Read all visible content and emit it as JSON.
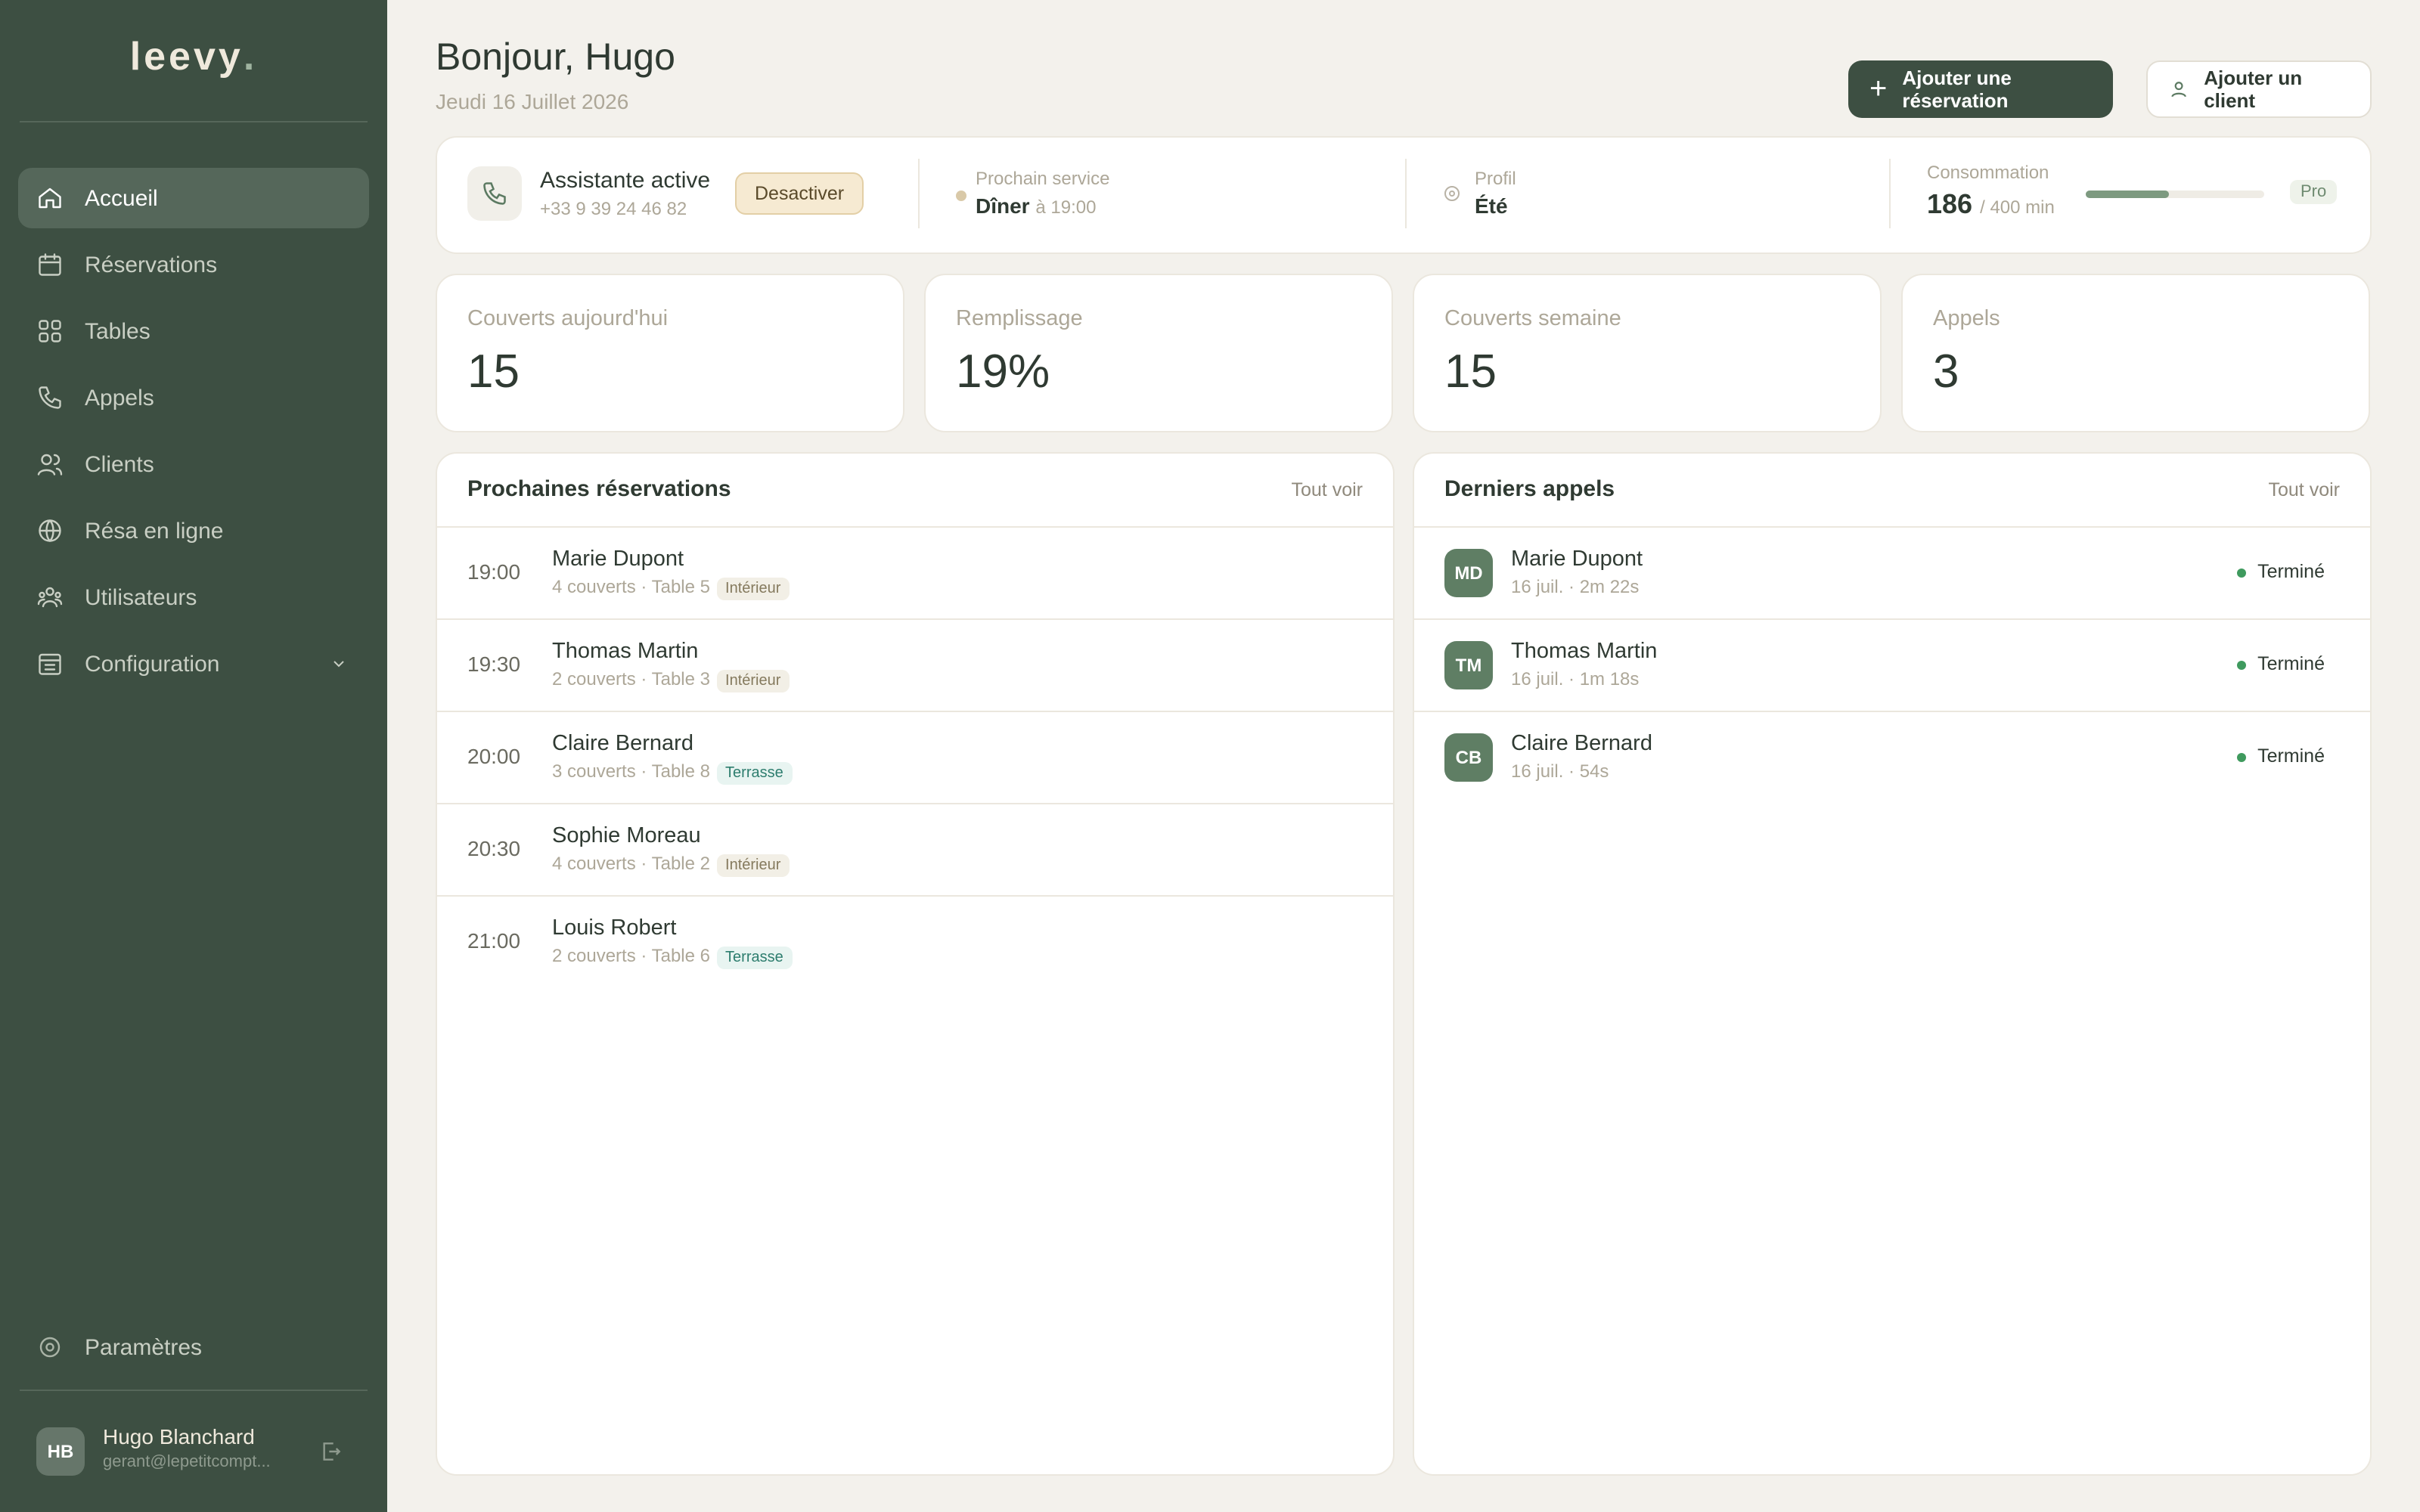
{
  "sidebar": {
    "brand": "leevy",
    "brand_dot": ".",
    "nav": [
      "Accueil",
      "Réservations",
      "Tables",
      "Appels",
      "Clients",
      "Résa en ligne",
      "Utilisateurs",
      "Configuration"
    ],
    "settings": "Paramètres",
    "user": {
      "initials": "HB",
      "name": "Hugo Blanchard",
      "email": "gerant@lepetitcompt..."
    }
  },
  "header": {
    "title": "Bonjour, Hugo",
    "date": "Jeudi 16 Juillet 2026",
    "buttons": [
      "Ajouter une réservation",
      "Ajouter un client"
    ]
  },
  "status": {
    "assistant": "Assistante active",
    "phone": "+33 9 39 24 46 82",
    "toggle": "Desactiver",
    "next_label": "Prochain service",
    "next_value": "Dîner",
    "next_time": "à 19:00",
    "profile_label": "Profil",
    "profile_value": "Été",
    "consumption_label": "Consommation",
    "used": 186,
    "limit": {
      "value": 400,
      "label": "/ 400 min"
    },
    "plan": "Pro"
  },
  "stats": [
    {
      "label": "Couverts aujourd'hui",
      "value": "15"
    },
    {
      "label": "Remplissage",
      "value": "19%"
    },
    {
      "label": "Couverts semaine",
      "value": "15"
    },
    {
      "label": "Appels",
      "value": "3"
    }
  ],
  "reservations": {
    "title": "Prochaines réservations",
    "link": "Tout voir",
    "rows": [
      {
        "time": "19:00",
        "name": "Marie Dupont",
        "detail": "4 couverts · Table 5",
        "tag": "Intérieur"
      },
      {
        "time": "19:30",
        "name": "Thomas Martin",
        "detail": "2 couverts · Table 3",
        "tag": "Intérieur"
      },
      {
        "time": "20:00",
        "name": "Claire Bernard",
        "detail": "3 couverts · Table 8",
        "tag": "Terrasse"
      },
      {
        "time": "20:30",
        "name": "Sophie Moreau",
        "detail": "4 couverts · Table 2",
        "tag": "Intérieur"
      },
      {
        "time": "21:00",
        "name": "Louis Robert",
        "detail": "2 couverts · Table 6",
        "tag": "Terrasse"
      }
    ]
  },
  "calls": {
    "title": "Derniers appels",
    "link": "Tout voir",
    "rows": [
      {
        "initials": "MD",
        "name": "Marie Dupont",
        "detail": "16 juil. · 2m 22s",
        "status": "Terminé"
      },
      {
        "initials": "TM",
        "name": "Thomas Martin",
        "detail": "16 juil. · 1m 18s",
        "status": "Terminé"
      },
      {
        "initials": "CB",
        "name": "Claire Bernard",
        "detail": "16 juil. · 54s",
        "status": "Terminé"
      }
    ]
  }
}
